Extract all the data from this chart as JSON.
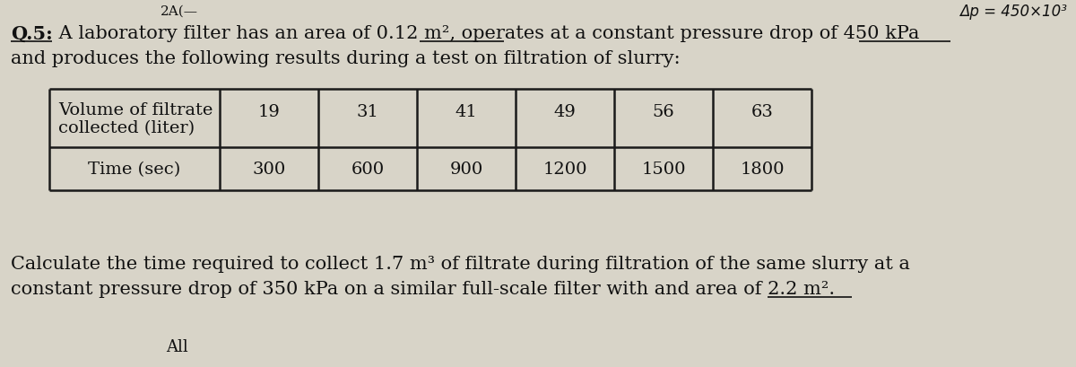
{
  "top_left_text": "2A(—",
  "top_right_text": "Δp = 450×10³",
  "q5_label": "Q.5:",
  "q5_rest": " A laboratory filter has an area of 0.12 m², operates at a constant pressure drop of 450 kPa",
  "question_line2": "and produces the following results during a test on filtration of slurry:",
  "table_row1_label_line1": "Volume of filtrate",
  "table_row1_label_line2": "collected (liter)",
  "table_row2_label": "Time (sec)",
  "volume_values": [
    19,
    31,
    41,
    49,
    56,
    63
  ],
  "time_values": [
    300,
    600,
    900,
    1200,
    1500,
    1800
  ],
  "calc_line1": "Calculate the time required to collect 1.7 m³ of filtrate during filtration of the same slurry at a",
  "calc_line2": "constant pressure drop of 350 kPa on a similar full-scale filter with and area of 2.2 m².",
  "bottom_text": "All",
  "bg_color": "#d8d4c8",
  "text_color": "#111111",
  "table_border_color": "#1a1a1a",
  "font_size_main": 15.0,
  "font_size_table": 14.0,
  "font_size_top": 11.0,
  "fig_width": 12.0,
  "fig_height": 4.1,
  "dpi": 100
}
